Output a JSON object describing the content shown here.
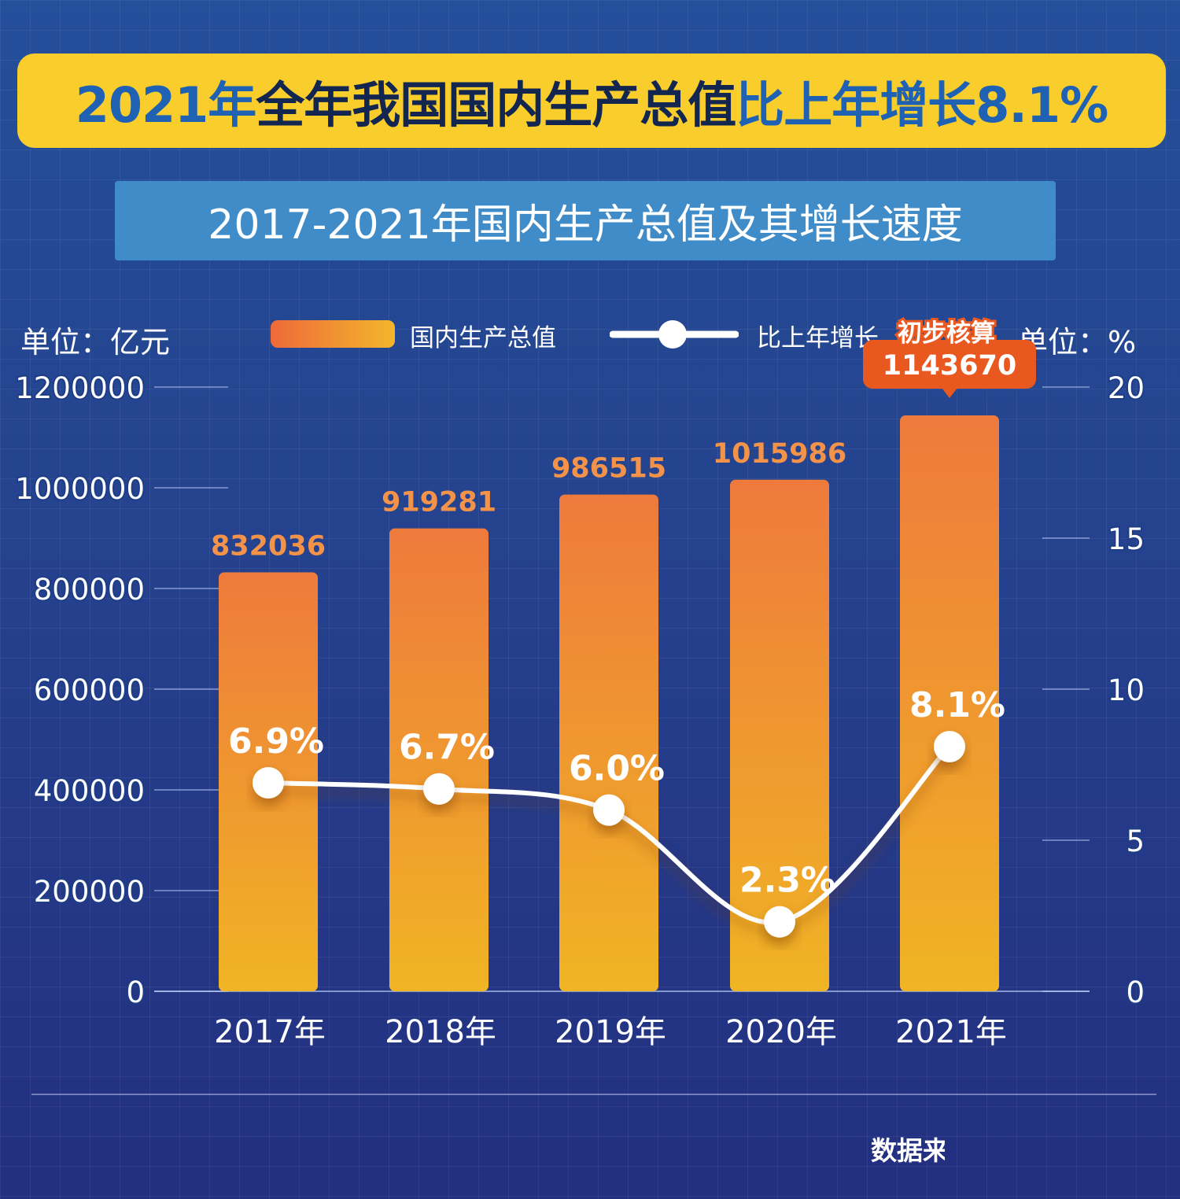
{
  "headline": {
    "part1": "2021年 ",
    "part2": "全年我国国内生产总值",
    "part3": "比上年增长8.1%"
  },
  "subtitle": "2017-2021年国内生产总值及其增长速度",
  "left_unit": "单位：亿元",
  "right_unit": "单位：%",
  "legend": {
    "bar": "国内生产总值",
    "line": "比上年增长"
  },
  "source_text": "数据来",
  "colors": {
    "bar_top": "#ee7a3c",
    "bar_bottom": "#f0b424",
    "bar_label": "#f3934a",
    "line": "#ffffff",
    "callout": "#e9591f",
    "headline_bg": "#f9cd2c",
    "subtitle_bg": "#3f8cc9"
  },
  "chart_data": {
    "type": "bar",
    "categories": [
      "2017年",
      "2018年",
      "2019年",
      "2020年",
      "2021年"
    ],
    "series": [
      {
        "name": "国内生产总值",
        "type": "bar",
        "axis": "left",
        "values": [
          832036,
          919281,
          986515,
          1015986,
          1143670
        ]
      },
      {
        "name": "比上年增长",
        "type": "line",
        "axis": "right",
        "values": [
          6.9,
          6.7,
          6.0,
          2.3,
          8.1
        ],
        "labels": [
          "6.9%",
          "6.7%",
          "6.0%",
          "2.3%",
          "8.1%"
        ]
      }
    ],
    "bar_labels": [
      "832036",
      "919281",
      "986515",
      "1015986",
      "1143670"
    ],
    "callout": {
      "index": 4,
      "note": "初步核算"
    },
    "ylim_left": [
      0,
      1200000
    ],
    "yticks_left": [
      "0",
      "200000",
      "400000",
      "600000",
      "800000",
      "1000000",
      "1200000"
    ],
    "ylim_right": [
      0,
      20
    ],
    "yticks_right": [
      "0",
      "5",
      "10",
      "15",
      "20"
    ]
  }
}
